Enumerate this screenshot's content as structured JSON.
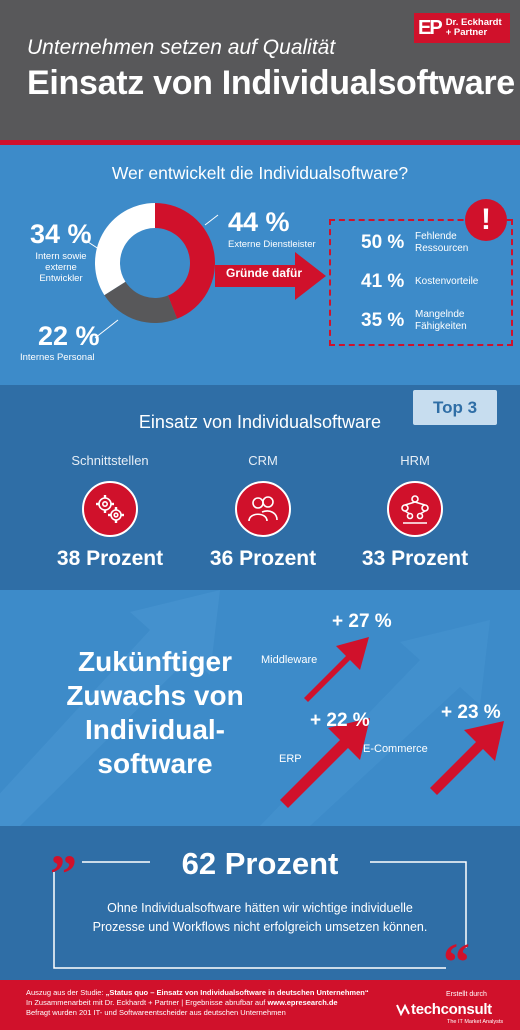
{
  "header": {
    "logo_mark": "EP",
    "logo_line1": "Dr. Eckhardt",
    "logo_line2": "+ Partner",
    "subtitle": "Unternehmen setzen auf Qualität",
    "title": "Einsatz von Individualsoftware"
  },
  "who": {
    "question": "Wer entwickelt die Individualsoftware?",
    "segments": [
      {
        "pct": "44 %",
        "label": "Externe Dienstleister",
        "value": 44,
        "color": "#d0112b"
      },
      {
        "pct": "22 %",
        "label": "Internes Personal",
        "value": 22,
        "color": "#58585a"
      },
      {
        "pct": "34 %",
        "label_lines": [
          "Intern sowie",
          "externe",
          "Entwickler"
        ],
        "value": 34,
        "color": "#ffffff"
      }
    ],
    "arrow_label": "Gründe dafür",
    "alert_symbol": "!",
    "reasons": [
      {
        "pct": "50 %",
        "lines": [
          "Fehlende",
          "Ressourcen"
        ]
      },
      {
        "pct": "41 %",
        "lines": [
          "Kostenvorteile"
        ]
      },
      {
        "pct": "35 %",
        "lines": [
          "Mangelnde",
          "Fähigkeiten"
        ]
      }
    ]
  },
  "top3": {
    "badge": "Top 3",
    "heading": "Einsatz von Individualsoftware",
    "items": [
      {
        "label": "Schnittstellen",
        "value": "38 Prozent",
        "icon": "gears-icon"
      },
      {
        "label": "CRM",
        "value": "36 Prozent",
        "icon": "people-icon"
      },
      {
        "label": "HRM",
        "value": "33 Prozent",
        "icon": "org-chart-icon"
      }
    ]
  },
  "growth": {
    "text_lines": [
      "Zukünftiger",
      "Zuwachs von",
      "Individual-",
      "software"
    ],
    "items": [
      {
        "label": "Middleware",
        "pct": "+ 27 %"
      },
      {
        "label": "ERP",
        "pct": "+ 22 %"
      },
      {
        "label": "E-Commerce",
        "pct": "+ 23 %"
      }
    ]
  },
  "quote": {
    "big": "62 Prozent",
    "text_line1": "Ohne Individualsoftware hätten wir wichtige individuelle",
    "text_line2": "Prozesse und Workflows nicht erfolgreich umsetzen können.",
    "open_mark": "”",
    "close_mark": "“"
  },
  "footer": {
    "line1_prefix": "Auszug aus der Studie: ",
    "line1_study": "„Status quo – Einsatz von Individualsoftware in deutschen Unternehmen“",
    "line2_prefix": "In Zusammenarbeit mit Dr. Eckhardt + Partner | Ergebnisse abrufbar auf ",
    "line2_url": "www.epresearch.de",
    "line3": "Befragt wurden 201 IT- und Softwareentscheider aus deutschen Unternehmen",
    "created_by": "Erstellt durch",
    "brand": "techconsult",
    "brand_sub": "The IT Market Analysts"
  }
}
